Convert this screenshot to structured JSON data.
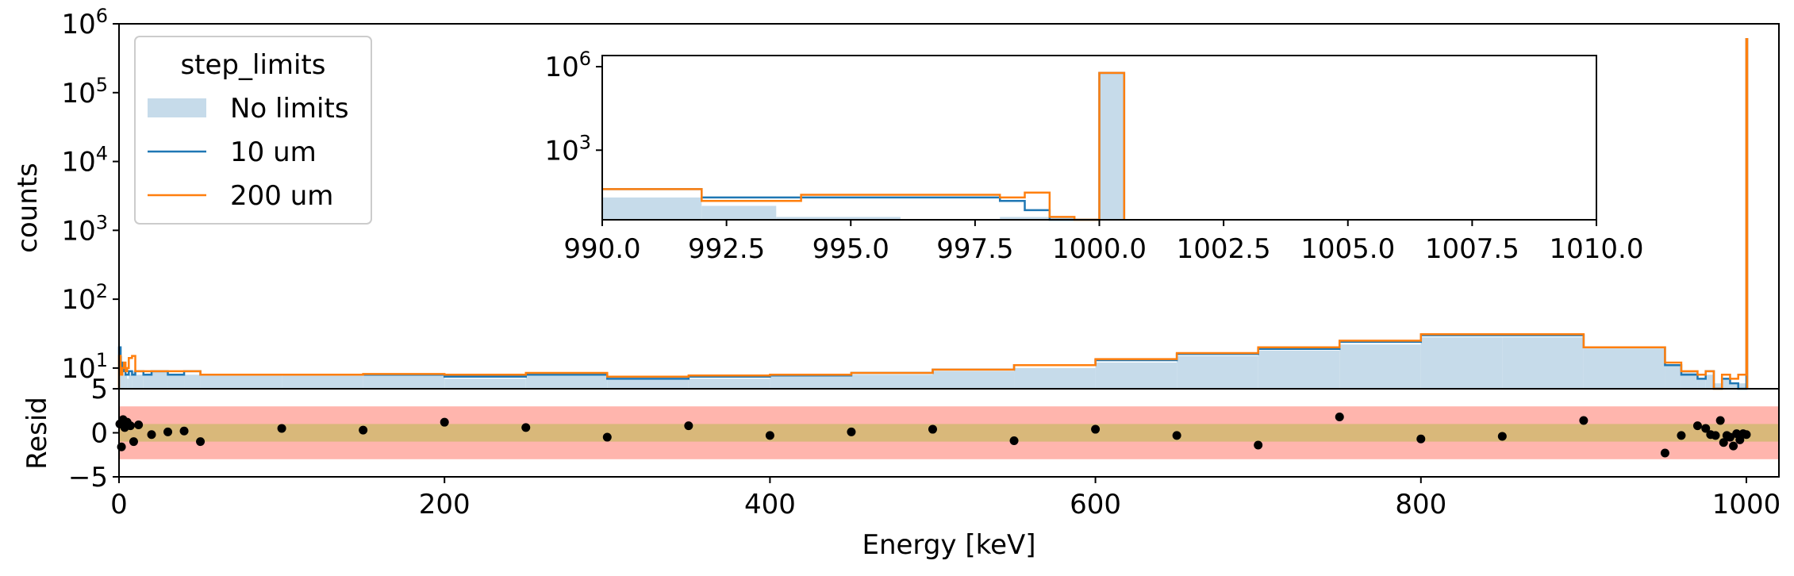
{
  "chart_data": [
    {
      "id": "main",
      "type": "step-histogram",
      "xlabel": "",
      "ylabel": "counts",
      "xlim": [
        0,
        1020
      ],
      "ylim_log10": [
        0.699,
        6
      ],
      "yscale": "log",
      "y_ticks": [
        {
          "base": "10",
          "exp": "1",
          "v": 10
        },
        {
          "base": "10",
          "exp": "2",
          "v": 100
        },
        {
          "base": "10",
          "exp": "3",
          "v": 1000
        },
        {
          "base": "10",
          "exp": "4",
          "v": 10000
        },
        {
          "base": "10",
          "exp": "5",
          "v": 100000
        },
        {
          "base": "10",
          "exp": "6",
          "v": 1000000
        }
      ],
      "legend": {
        "title": "step_limits",
        "position": "upper-left",
        "entries": [
          "No limits",
          "10 um",
          "200 um"
        ]
      },
      "series": [
        {
          "name": "No limits",
          "style": "fill",
          "color": "#c6dbea",
          "edges": [
            0,
            1,
            2,
            3,
            4,
            5,
            6,
            8,
            10,
            15,
            20,
            30,
            40,
            50,
            100,
            150,
            200,
            250,
            300,
            350,
            400,
            450,
            500,
            550,
            600,
            650,
            700,
            750,
            800,
            850,
            900,
            950,
            960,
            970,
            975,
            980,
            985,
            990,
            995,
            1000,
            1000.5
          ],
          "values": [
            8,
            15,
            9,
            8,
            8,
            7,
            8,
            9,
            8,
            8,
            9,
            8,
            8,
            8,
            8,
            8,
            7,
            8,
            7,
            7,
            8,
            8,
            9,
            10,
            12,
            15,
            18,
            22,
            28,
            28,
            20,
            11,
            9,
            7,
            8,
            6,
            7,
            6,
            6,
            600000
          ]
        },
        {
          "name": "10 um",
          "style": "step",
          "color": "#1f77b4",
          "edges": [
            0,
            1,
            2,
            3,
            4,
            5,
            6,
            8,
            10,
            15,
            20,
            30,
            40,
            50,
            100,
            150,
            200,
            250,
            300,
            350,
            400,
            450,
            500,
            550,
            600,
            650,
            700,
            750,
            800,
            850,
            900,
            950,
            960,
            970,
            975,
            980,
            985,
            990,
            995,
            1000,
            1000.5
          ],
          "values": [
            20,
            12,
            9,
            10,
            8,
            8,
            9,
            8,
            9,
            8,
            9,
            8,
            9,
            8,
            8,
            8,
            7.5,
            8,
            7,
            7.5,
            7.8,
            8.5,
            9.5,
            11,
            13,
            16,
            19,
            24,
            30,
            30,
            20,
            11,
            8,
            7,
            9,
            5,
            7,
            6,
            5,
            600000
          ]
        },
        {
          "name": "200 um",
          "style": "step",
          "color": "#ff7f0e",
          "edges": [
            0,
            1,
            2,
            3,
            4,
            5,
            6,
            8,
            10,
            15,
            20,
            30,
            40,
            50,
            100,
            150,
            200,
            250,
            300,
            350,
            400,
            450,
            500,
            550,
            600,
            650,
            700,
            750,
            800,
            850,
            900,
            950,
            960,
            970,
            975,
            980,
            985,
            990,
            995,
            1000,
            1000.5
          ],
          "values": [
            15,
            8,
            10,
            12,
            9,
            10,
            14,
            15,
            9,
            9,
            9,
            9,
            9,
            8,
            8,
            8.2,
            8,
            8.5,
            7.5,
            7.8,
            8,
            8.5,
            9.5,
            11,
            13.5,
            16.5,
            20,
            25,
            31,
            31,
            20,
            12,
            9,
            8,
            9,
            4,
            8,
            7,
            8,
            600000
          ]
        }
      ]
    },
    {
      "id": "inset",
      "type": "step-histogram",
      "yscale": "log",
      "xlim": [
        990,
        1010
      ],
      "ylim_log10": [
        0.5,
        6.4
      ],
      "x_ticks": [
        "990.0",
        "992.5",
        "995.0",
        "997.5",
        "1000.0",
        "1002.5",
        "1005.0",
        "1007.5",
        "1010.0"
      ],
      "y_ticks": [
        {
          "base": "10",
          "exp": "3",
          "v": 1000
        },
        {
          "base": "10",
          "exp": "6",
          "v": 1000000
        }
      ],
      "series": [
        {
          "name": "No limits",
          "style": "fill",
          "color": "#c6dbea",
          "edges": [
            990,
            992,
            993.5,
            996,
            998,
            998.5,
            999,
            999.5,
            1000,
            1000.5
          ],
          "values": [
            20,
            10,
            4,
            0.01,
            4,
            4,
            4,
            0.01,
            600000
          ]
        },
        {
          "name": "10 um",
          "style": "step",
          "color": "#1f77b4",
          "edges": [
            990,
            992,
            994,
            998,
            998.5,
            999,
            999.5,
            1000,
            1000.5
          ],
          "values": [
            40,
            20,
            20,
            15,
            7,
            0.01,
            0.01,
            600000
          ]
        },
        {
          "name": "200 um",
          "style": "step",
          "color": "#ff7f0e",
          "edges": [
            990,
            992,
            994,
            998,
            998.5,
            999,
            999.5,
            1000,
            1000.5
          ],
          "values": [
            40,
            15,
            25,
            20,
            30,
            4,
            0.01,
            600000
          ]
        }
      ]
    },
    {
      "id": "residuals",
      "type": "scatter",
      "xlabel": "Energy [keV]",
      "ylabel": "Resid",
      "xlim": [
        0,
        1020
      ],
      "ylim": [
        -5,
        5
      ],
      "x_ticks": [
        "0",
        "200",
        "400",
        "600",
        "800",
        "1000"
      ],
      "y_ticks": [
        "−5",
        "0",
        "5"
      ],
      "bands": [
        {
          "from": -3,
          "to": 3,
          "color": "#ffb5ad"
        },
        {
          "from": -1,
          "to": 1,
          "color": "#d9b87a"
        }
      ],
      "points": [
        {
          "x": 0.5,
          "y": 1.0
        },
        {
          "x": 1.5,
          "y": -1.6
        },
        {
          "x": 2.5,
          "y": 1.5
        },
        {
          "x": 3.5,
          "y": 0.6
        },
        {
          "x": 5,
          "y": 1.2
        },
        {
          "x": 7,
          "y": 0.8
        },
        {
          "x": 9,
          "y": -1.0
        },
        {
          "x": 12,
          "y": 0.9
        },
        {
          "x": 20,
          "y": -0.2
        },
        {
          "x": 30,
          "y": 0.1
        },
        {
          "x": 40,
          "y": 0.2
        },
        {
          "x": 50,
          "y": -1.0
        },
        {
          "x": 100,
          "y": 0.5
        },
        {
          "x": 150,
          "y": 0.3
        },
        {
          "x": 200,
          "y": 1.2
        },
        {
          "x": 250,
          "y": 0.6
        },
        {
          "x": 300,
          "y": -0.5
        },
        {
          "x": 350,
          "y": 0.8
        },
        {
          "x": 400,
          "y": -0.3
        },
        {
          "x": 450,
          "y": 0.1
        },
        {
          "x": 500,
          "y": 0.4
        },
        {
          "x": 550,
          "y": -0.9
        },
        {
          "x": 600,
          "y": 0.4
        },
        {
          "x": 650,
          "y": -0.3
        },
        {
          "x": 700,
          "y": -1.4
        },
        {
          "x": 750,
          "y": 1.8
        },
        {
          "x": 800,
          "y": -0.7
        },
        {
          "x": 850,
          "y": -0.4
        },
        {
          "x": 900,
          "y": 1.4
        },
        {
          "x": 950,
          "y": -2.3
        },
        {
          "x": 960,
          "y": -0.3
        },
        {
          "x": 970,
          "y": 0.8
        },
        {
          "x": 975,
          "y": 0.5
        },
        {
          "x": 978,
          "y": -0.2
        },
        {
          "x": 981,
          "y": -0.3
        },
        {
          "x": 984,
          "y": 1.4
        },
        {
          "x": 986,
          "y": -1.1
        },
        {
          "x": 988,
          "y": -0.3
        },
        {
          "x": 990,
          "y": -0.5
        },
        {
          "x": 992,
          "y": -1.5
        },
        {
          "x": 994,
          "y": -0.1
        },
        {
          "x": 996,
          "y": -0.8
        },
        {
          "x": 998,
          "y": -0.1
        },
        {
          "x": 1000,
          "y": -0.2
        }
      ]
    }
  ]
}
